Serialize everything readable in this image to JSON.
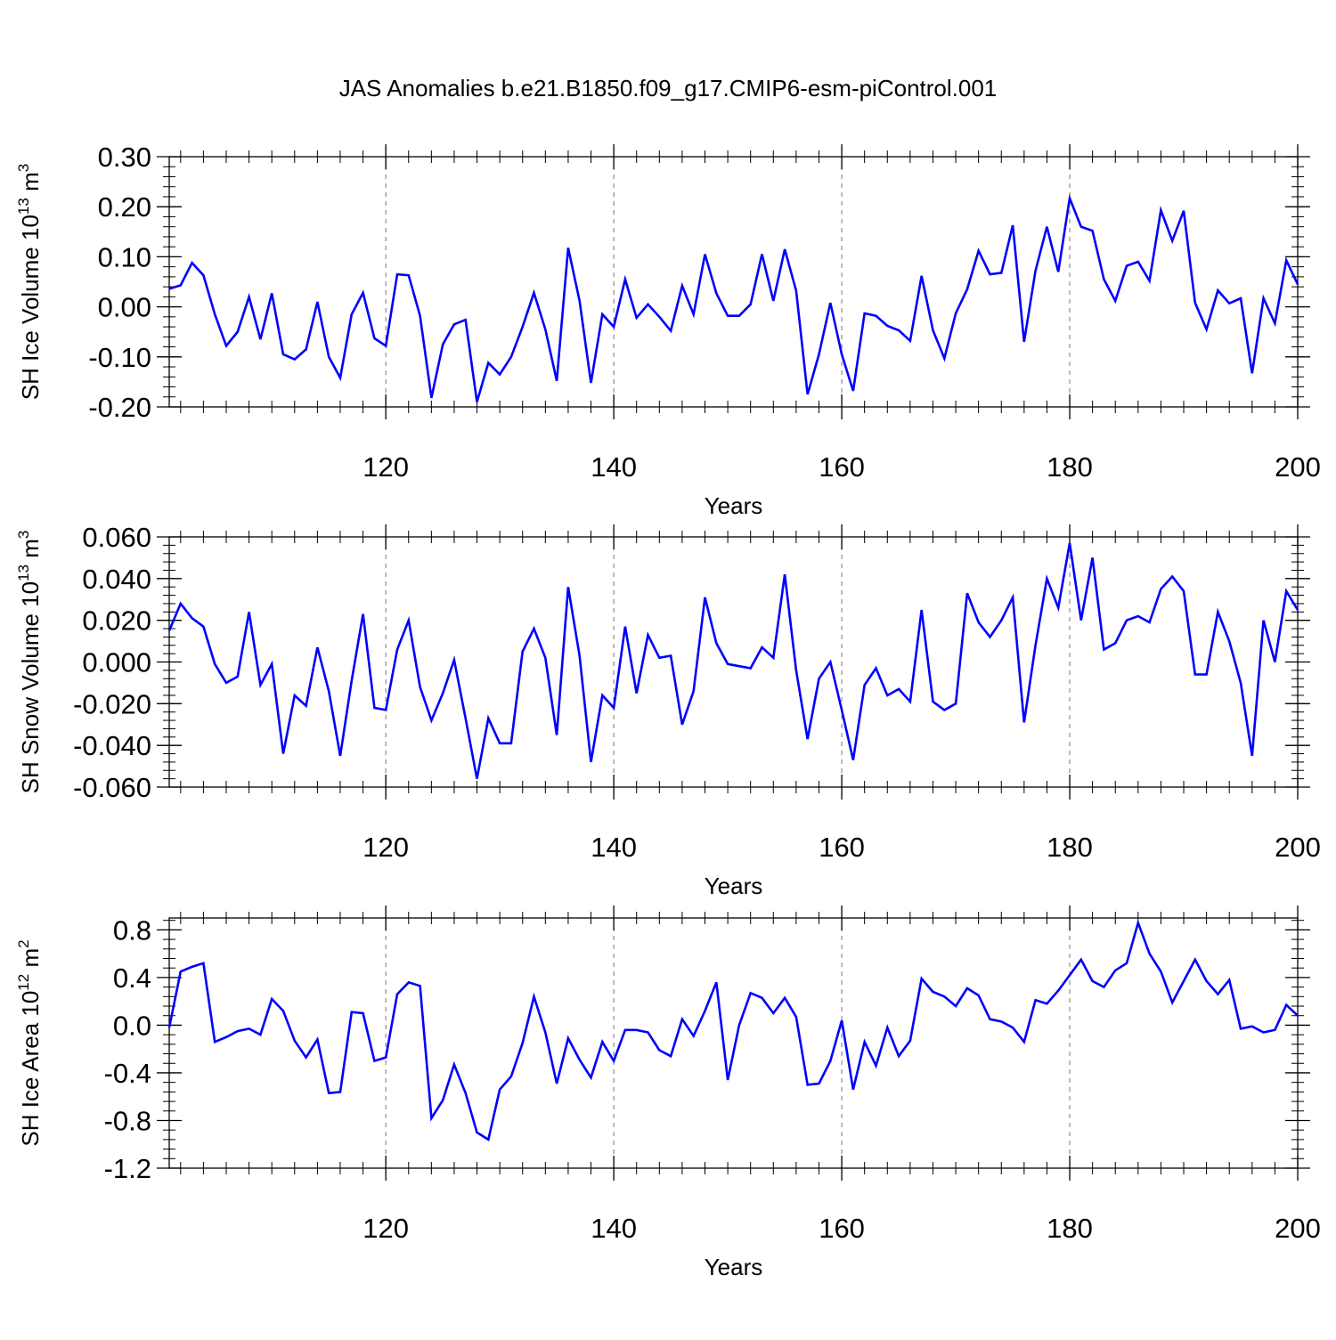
{
  "figure": {
    "title": "JAS Anomalies b.e21.B1850.f09_g17.CMIP6-esm-piControl.001",
    "line_color": "#0000ff"
  },
  "chart_data": [
    {
      "type": "line",
      "title": "",
      "xlabel": "Years",
      "ylabel_main": "SH Ice Volume 10",
      "ylabel_exp": "13",
      "ylabel_unit": " m",
      "ylabel_unit_exp": "3",
      "xlim": [
        101,
        200
      ],
      "ylim": [
        -0.2,
        0.3
      ],
      "xticks": [
        120,
        140,
        160,
        180,
        200
      ],
      "xtick_labels": [
        "120",
        "140",
        "160",
        "180",
        "200"
      ],
      "yticks": [
        -0.2,
        -0.1,
        0.0,
        0.1,
        0.2,
        0.3
      ],
      "ytick_labels": [
        "-0.20",
        "-0.10",
        "0.00",
        "0.10",
        "0.20",
        "0.30"
      ],
      "grid": "vertical dashed at major x ticks",
      "series": [
        {
          "x_start": 101,
          "values": [
            0.036,
            0.043,
            0.088,
            0.063,
            -0.015,
            -0.078,
            -0.05,
            0.02,
            -0.065,
            0.027,
            -0.095,
            -0.105,
            -0.085,
            0.01,
            -0.1,
            -0.142,
            -0.015,
            0.028,
            -0.063,
            -0.078,
            0.065,
            0.063,
            -0.018,
            -0.182,
            -0.075,
            -0.035,
            -0.026,
            -0.19,
            -0.112,
            -0.135,
            -0.1,
            -0.04,
            0.028,
            -0.045,
            -0.148,
            0.118,
            0.012,
            -0.152,
            -0.015,
            -0.04,
            0.055,
            -0.022,
            0.005,
            -0.02,
            -0.048,
            0.042,
            -0.015,
            0.105,
            0.027,
            -0.018,
            -0.018,
            0.005,
            0.105,
            0.012,
            0.115,
            0.032,
            -0.175,
            -0.095,
            0.008,
            -0.095,
            -0.168,
            -0.013,
            -0.018,
            -0.038,
            -0.047,
            -0.068,
            0.062,
            -0.047,
            -0.103,
            -0.013,
            0.035,
            0.112,
            0.065,
            0.068,
            0.163,
            -0.07,
            0.072,
            0.16,
            0.07,
            0.217,
            0.16,
            0.152,
            0.055,
            0.012,
            0.082,
            0.09,
            0.052,
            0.193,
            0.132,
            0.192,
            0.008,
            -0.045,
            0.033,
            0.007,
            0.017,
            -0.133,
            0.017,
            -0.033,
            0.093,
            0.045
          ]
        }
      ]
    },
    {
      "type": "line",
      "title": "",
      "xlabel": "Years",
      "ylabel_main": "SH Snow Volume 10",
      "ylabel_exp": "13",
      "ylabel_unit": " m",
      "ylabel_unit_exp": "3",
      "xlim": [
        101,
        200
      ],
      "ylim": [
        -0.06,
        0.06
      ],
      "xticks": [
        120,
        140,
        160,
        180,
        200
      ],
      "xtick_labels": [
        "120",
        "140",
        "160",
        "180",
        "200"
      ],
      "yticks": [
        -0.06,
        -0.04,
        -0.02,
        0.0,
        0.02,
        0.04,
        0.06
      ],
      "ytick_labels": [
        "-0.060",
        "-0.040",
        "-0.020",
        "0.000",
        "0.020",
        "0.040",
        "0.060"
      ],
      "grid": "vertical dashed at major x ticks",
      "series": [
        {
          "x_start": 101,
          "values": [
            0.015,
            0.028,
            0.021,
            0.017,
            -0.001,
            -0.01,
            -0.007,
            0.024,
            -0.011,
            -0.001,
            -0.044,
            -0.016,
            -0.021,
            0.007,
            -0.014,
            -0.045,
            -0.009,
            0.023,
            -0.022,
            -0.023,
            0.006,
            0.02,
            -0.012,
            -0.028,
            -0.015,
            0.001,
            -0.027,
            -0.056,
            -0.027,
            -0.039,
            -0.039,
            0.005,
            0.016,
            0.002,
            -0.035,
            0.036,
            0.003,
            -0.048,
            -0.016,
            -0.022,
            0.017,
            -0.015,
            0.013,
            0.002,
            0.003,
            -0.03,
            -0.014,
            0.031,
            0.009,
            -0.001,
            -0.002,
            -0.003,
            0.007,
            0.002,
            0.042,
            -0.004,
            -0.037,
            -0.008,
            0.0,
            -0.023,
            -0.047,
            -0.011,
            -0.003,
            -0.016,
            -0.013,
            -0.019,
            0.025,
            -0.019,
            -0.023,
            -0.02,
            0.033,
            0.019,
            0.012,
            0.02,
            0.031,
            -0.029,
            0.008,
            0.04,
            0.026,
            0.057,
            0.02,
            0.05,
            0.006,
            0.009,
            0.02,
            0.022,
            0.019,
            0.035,
            0.041,
            0.034,
            -0.006,
            -0.006,
            0.024,
            0.01,
            -0.01,
            -0.045,
            0.02,
            0.0,
            0.034,
            0.025
          ]
        }
      ]
    },
    {
      "type": "line",
      "title": "",
      "xlabel": "Years",
      "ylabel_main": "SH Ice Area 10",
      "ylabel_exp": "12",
      "ylabel_unit": " m",
      "ylabel_unit_exp": "2",
      "xlim": [
        101,
        200
      ],
      "ylim": [
        -1.2,
        0.9
      ],
      "xticks": [
        120,
        140,
        160,
        180,
        200
      ],
      "xtick_labels": [
        "120",
        "140",
        "160",
        "180",
        "200"
      ],
      "yticks": [
        -1.2,
        -0.8,
        -0.4,
        0.0,
        0.4,
        0.8
      ],
      "ytick_labels": [
        "-1.2",
        "-0.8",
        "-0.4",
        "0.0",
        "0.4",
        "0.8"
      ],
      "grid": "vertical dashed at major x ticks",
      "series": [
        {
          "x_start": 101,
          "values": [
            -0.02,
            0.45,
            0.49,
            0.52,
            -0.14,
            -0.1,
            -0.05,
            -0.03,
            -0.08,
            0.22,
            0.12,
            -0.13,
            -0.27,
            -0.12,
            -0.57,
            -0.56,
            0.11,
            0.1,
            -0.3,
            -0.27,
            0.26,
            0.36,
            0.33,
            -0.78,
            -0.63,
            -0.33,
            -0.57,
            -0.9,
            -0.96,
            -0.54,
            -0.43,
            -0.15,
            0.24,
            -0.06,
            -0.49,
            -0.11,
            -0.29,
            -0.44,
            -0.14,
            -0.3,
            -0.04,
            -0.04,
            -0.06,
            -0.21,
            -0.26,
            0.05,
            -0.09,
            0.12,
            0.36,
            -0.46,
            0.0,
            0.27,
            0.23,
            0.1,
            0.23,
            0.07,
            -0.5,
            -0.49,
            -0.3,
            0.04,
            -0.54,
            -0.14,
            -0.34,
            -0.02,
            -0.26,
            -0.13,
            0.39,
            0.28,
            0.24,
            0.16,
            0.31,
            0.25,
            0.05,
            0.03,
            -0.02,
            -0.14,
            0.21,
            0.18,
            0.29,
            0.42,
            0.55,
            0.37,
            0.32,
            0.46,
            0.52,
            0.86,
            0.6,
            0.45,
            0.19,
            0.37,
            0.55,
            0.37,
            0.26,
            0.38,
            -0.03,
            -0.01,
            -0.06,
            -0.04,
            0.17,
            0.08
          ]
        }
      ]
    }
  ]
}
